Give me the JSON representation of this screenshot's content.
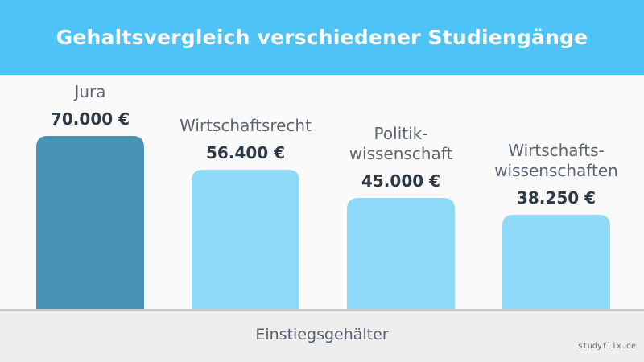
{
  "header": {
    "title": "Gehaltsvergleich verschiedener Studiengänge"
  },
  "footer": {
    "xlabel": "Einstiegsgehälter",
    "brand": "studyflix.de"
  },
  "colors": {
    "header_bg": "#4ec3f7",
    "highlight_bar": "#4a93b4",
    "bar": "#8ed8f8"
  },
  "chart_data": {
    "type": "bar",
    "title": "Gehaltsvergleich verschiedener Studiengänge",
    "xlabel": "Einstiegsgehälter",
    "ylabel": "",
    "categories": [
      [
        "Jura"
      ],
      [
        "Wirtschaftsrecht"
      ],
      [
        "Politik-",
        "wissenschaft"
      ],
      [
        "Wirtschafts-",
        "wissenschaften"
      ]
    ],
    "values": [
      70000,
      56400,
      45000,
      38250
    ],
    "value_labels": [
      "70.000 €",
      "56.400 €",
      "45.000 €",
      "38.250 €"
    ],
    "highlight_index": 0,
    "grid": false
  }
}
